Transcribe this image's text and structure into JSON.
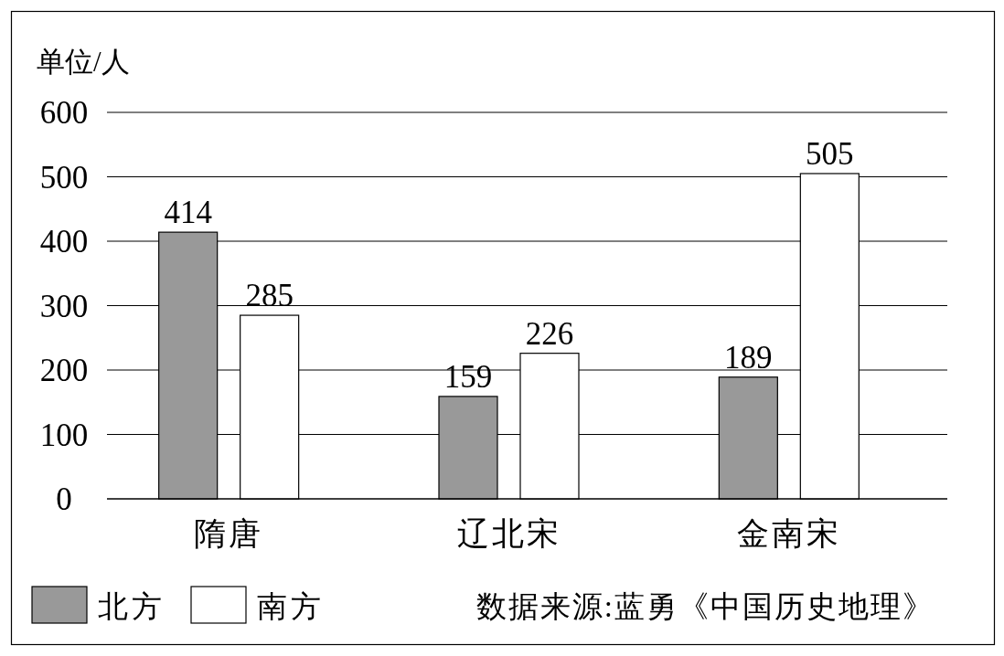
{
  "chart_data": {
    "type": "bar",
    "ylabel": "单位/人",
    "categories": [
      "隋唐",
      "辽北宋",
      "金南宋"
    ],
    "series": [
      {
        "name": "北方",
        "color": "#999999",
        "values": [
          414,
          159,
          189
        ]
      },
      {
        "name": "南方",
        "color": "#ffffff",
        "values": [
          285,
          226,
          505
        ]
      }
    ],
    "ylim": [
      0,
      600
    ],
    "yticks": [
      0,
      100,
      200,
      300,
      400,
      500,
      600
    ],
    "grid": "y",
    "legend": "bottom left",
    "data_labels": true,
    "annotations": [
      "数据来源:蓝勇《中国历史地理》"
    ]
  }
}
